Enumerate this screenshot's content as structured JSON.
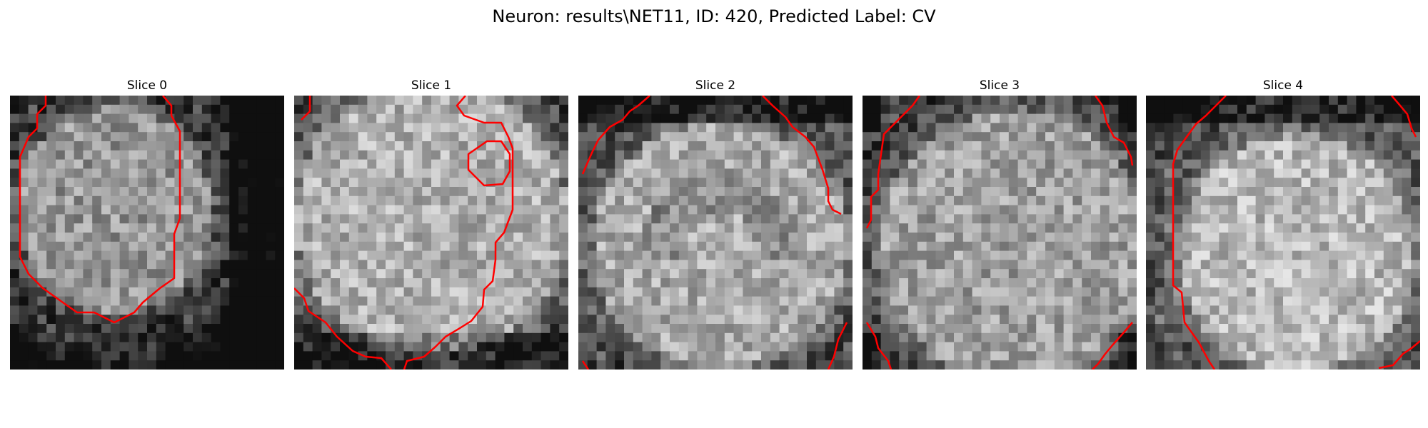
{
  "title": "Neuron: results\\NET11, ID: 420, Predicted Label: CV",
  "contour_color": "#ff0000",
  "slices": [
    {
      "label": "Slice 0"
    },
    {
      "label": "Slice 1"
    },
    {
      "label": "Slice 2"
    },
    {
      "label": "Slice 3"
    },
    {
      "label": "Slice 4"
    }
  ]
}
